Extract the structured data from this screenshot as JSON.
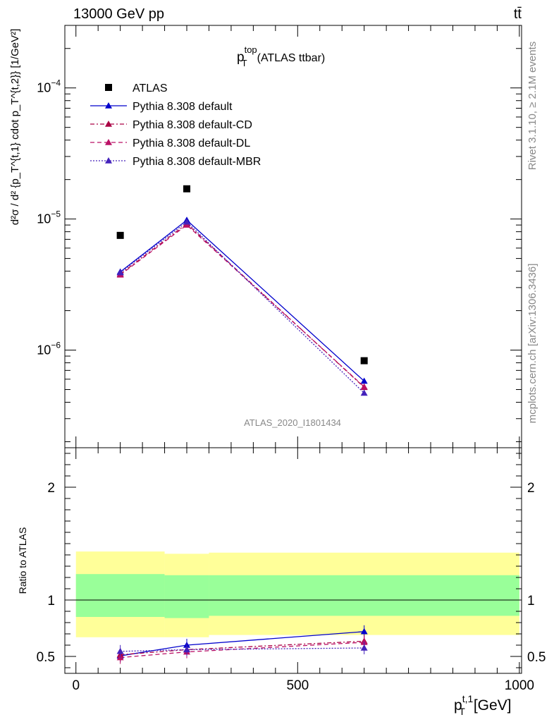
{
  "header": {
    "energy_label": "13000 GeV pp",
    "process_label": "tt̄",
    "side_rivet": "Rivet 3.1.10, ≥ 2.1M events",
    "side_mcplots": "mcplots.cern.ch [arXiv:1306.3436]",
    "analysis_id": "ATLAS_2020_I1801434"
  },
  "chart_data": [
    {
      "type": "line",
      "title_main": "p",
      "title_sup": "top",
      "title_sub": "T",
      "title_rest": "(ATLAS ttbar)",
      "ylabel": "d²σ / d² {p_T^{t,1} cdot p_T^{t,2}} [1/GeV²]",
      "yscale": "log",
      "ylim": [
        1.8e-07,
        0.0003
      ],
      "xlim": [
        -25,
        1005
      ],
      "y_ticks": [
        {
          "value": 1e-06,
          "base": "10",
          "exp": "−6"
        },
        {
          "value": 1e-05,
          "base": "10",
          "exp": "−5"
        },
        {
          "value": 0.0001,
          "base": "10",
          "exp": "−4"
        }
      ],
      "x": [
        100,
        250,
        650
      ],
      "series": [
        {
          "name": "ATLAS",
          "values": [
            7.5e-06,
            1.7e-05,
            8.3e-07
          ],
          "color": "#000000",
          "marker": "square",
          "dash": ""
        },
        {
          "name": "Pythia 8.308 default",
          "values": [
            3.95e-06,
            9.8e-06,
            5.8e-07
          ],
          "color": "#0000cc",
          "marker": "triangle",
          "dash": ""
        },
        {
          "name": "Pythia 8.308 default-CD",
          "values": [
            3.8e-06,
            9.2e-06,
            5.2e-07
          ],
          "color": "#aa0044",
          "marker": "triangle",
          "dash": "6,3,2,3"
        },
        {
          "name": "Pythia 8.308 default-DL",
          "values": [
            3.75e-06,
            9e-06,
            5.25e-07
          ],
          "color": "#bb1166",
          "marker": "triangle",
          "dash": "6,4"
        },
        {
          "name": "Pythia 8.308 default-MBR",
          "values": [
            3.9e-06,
            9.5e-06,
            4.7e-07
          ],
          "color": "#4422bb",
          "marker": "triangle",
          "dash": "2,2"
        }
      ]
    },
    {
      "type": "line",
      "ylabel": "Ratio to ATLAS",
      "xlabel_main": "p",
      "xlabel_sup": "t,1",
      "xlabel_sub": "T",
      "xlabel_unit": "[GeV]",
      "ylim": [
        0.35,
        2.35
      ],
      "xlim": [
        -25,
        1005
      ],
      "x_ticks": [
        0,
        500,
        1000
      ],
      "y_ticks": [
        0.5,
        1,
        2
      ],
      "bands": {
        "edges": [
          0,
          200,
          300,
          1000
        ],
        "yellow_lo": [
          0.67,
          0.67,
          0.69
        ],
        "yellow_hi": [
          1.43,
          1.41,
          1.42
        ],
        "green_lo": [
          0.85,
          0.84,
          0.86
        ],
        "green_hi": [
          1.23,
          1.22,
          1.22
        ]
      },
      "x": [
        100,
        250,
        650
      ],
      "series": [
        {
          "name": "Pythia 8.308 default",
          "values": [
            0.505,
            0.6,
            0.72
          ],
          "color": "#0000cc",
          "dash": ""
        },
        {
          "name": "Pythia 8.308 default-CD",
          "values": [
            0.515,
            0.56,
            0.635
          ],
          "color": "#aa0044",
          "dash": "6,3,2,3"
        },
        {
          "name": "Pythia 8.308 default-DL",
          "values": [
            0.49,
            0.54,
            0.625
          ],
          "color": "#bb1166",
          "dash": "6,4"
        },
        {
          "name": "Pythia 8.308 default-MBR",
          "values": [
            0.545,
            0.56,
            0.575
          ],
          "color": "#4422bb",
          "dash": "2,2"
        }
      ]
    }
  ]
}
